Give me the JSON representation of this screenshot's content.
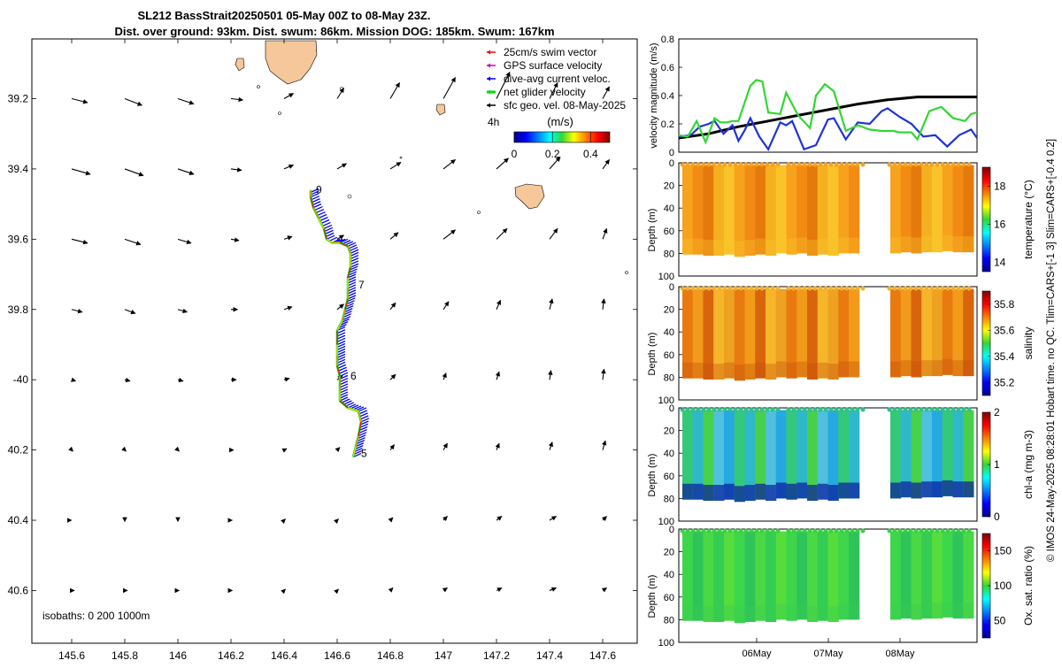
{
  "title": {
    "line1": "SL212 BassStrait20250501 05-May 00Z to 08-May 23Z.",
    "line2": "Dist. over ground: 93km. Dist. swum: 86km. Mission DOG: 185km. Swum: 167km"
  },
  "footer_note": "© IMOS 24-May-2025 08:28:01 Hobart time. no QC. Tlim=CARS+[-1 3] Slim=CARS+[-0.4 0.2]",
  "colors": {
    "swim": "#ff0000",
    "gps": "#cc00cc",
    "dac": "#0000ff",
    "net": "#00dd00",
    "sfc": "#000000",
    "land": "#f6c79a",
    "vel_black": "#000000",
    "vel_blue": "#1f33d6",
    "vel_green": "#33d633"
  },
  "chart_data": [
    {
      "type": "scatter",
      "name": "map",
      "xlabel": "",
      "ylabel": "",
      "xlim": [
        145.45,
        147.73
      ],
      "ylim": [
        -40.75,
        -39.03
      ],
      "xticks": [
        145.6,
        145.8,
        146,
        146.2,
        146.4,
        146.6,
        146.8,
        147,
        147.2,
        147.4,
        147.6
      ],
      "xtick_labels": [
        "145.6",
        "145.8",
        "146",
        "146.2",
        "146.4",
        "146.6",
        "146.8",
        "147",
        "147.2",
        "147.4",
        "147.6"
      ],
      "yticks": [
        -39.2,
        -39.4,
        -39.6,
        -39.8,
        -40,
        -40.2,
        -40.4,
        -40.6
      ],
      "ytick_labels": [
        "39.2",
        "39.4",
        "39.6",
        "39.8",
        "-40",
        "40.2",
        "40.4",
        "40.6"
      ],
      "legend": [
        {
          "label": "25cm/s swim vector",
          "color": "#ff0000"
        },
        {
          "label": "GPS surface velocity",
          "color": "#cc00cc"
        },
        {
          "label": "dive-avg current veloc.",
          "color": "#0000ff"
        },
        {
          "label": "net glider velocity",
          "color": "#00dd00"
        },
        {
          "label": "sfc geo. vel. 08-May-2025",
          "color": "#000000"
        }
      ],
      "legend_position": "top-right",
      "scale_label": "4h",
      "colorbar": {
        "label": "(m/s)",
        "ticks": [
          "0",
          "0.2",
          "0.4"
        ],
        "range": [
          0,
          0.5
        ]
      },
      "isobaths_label": "isobaths: 0   200  1000m",
      "day_labels": [
        {
          "text": "9",
          "lon": 146.52,
          "lat": -39.47
        },
        {
          "text": "7",
          "lon": 146.68,
          "lat": -39.74
        },
        {
          "text": "6",
          "lon": 146.65,
          "lat": -40.0
        },
        {
          "text": "5",
          "lon": 146.69,
          "lat": -40.22
        }
      ],
      "track": [
        [
          146.66,
          -40.22
        ],
        [
          146.67,
          -40.19
        ],
        [
          146.68,
          -40.16
        ],
        [
          146.69,
          -40.12
        ],
        [
          146.68,
          -40.09
        ],
        [
          146.64,
          -40.08
        ],
        [
          146.61,
          -40.06
        ],
        [
          146.61,
          -40.03
        ],
        [
          146.61,
          -39.99
        ],
        [
          146.6,
          -39.96
        ],
        [
          146.6,
          -39.93
        ],
        [
          146.6,
          -39.9
        ],
        [
          146.6,
          -39.86
        ],
        [
          146.62,
          -39.83
        ],
        [
          146.63,
          -39.8
        ],
        [
          146.64,
          -39.77
        ],
        [
          146.64,
          -39.74
        ],
        [
          146.64,
          -39.71
        ],
        [
          146.65,
          -39.68
        ],
        [
          146.65,
          -39.64
        ],
        [
          146.64,
          -39.62
        ],
        [
          146.61,
          -39.61
        ],
        [
          146.58,
          -39.61
        ],
        [
          146.56,
          -39.6
        ],
        [
          146.55,
          -39.57
        ],
        [
          146.53,
          -39.54
        ],
        [
          146.51,
          -39.51
        ],
        [
          146.5,
          -39.48
        ],
        [
          146.5,
          -39.46
        ]
      ],
      "vectors": {
        "lons": [
          145.6,
          145.8,
          146,
          146.2,
          146.4,
          146.6,
          146.8,
          147,
          147.2,
          147.4,
          147.6
        ],
        "lats": [
          -39.2,
          -39.4,
          -39.6,
          -39.8,
          -40,
          -40.2,
          -40.4,
          -40.6
        ],
        "u": [
          [
            0.12,
            0.13,
            0.12,
            0.09,
            0.07,
            0.05,
            0.07,
            0.09,
            0.1,
            0.06,
            0.05
          ],
          [
            0.14,
            0.14,
            0.12,
            0.08,
            0.07,
            0.07,
            0.08,
            0.09,
            0.09,
            0.08,
            0.05
          ],
          [
            0.12,
            0.12,
            0.1,
            0.06,
            0.06,
            0.05,
            0.06,
            0.09,
            0.08,
            0.06,
            0.03
          ],
          [
            0.08,
            0.08,
            0.07,
            0.05,
            0.06,
            0.05,
            0.04,
            0.04,
            0.03,
            0.02,
            0.01
          ],
          [
            0.03,
            0.04,
            0.04,
            0.04,
            0.04,
            0.04,
            0.04,
            0.02,
            0.02,
            0.01,
            0.01
          ],
          [
            0.01,
            0.01,
            0.01,
            0.02,
            0.02,
            0.02,
            0.03,
            0.03,
            0.02,
            0.02,
            0.02
          ],
          [
            0.0,
            0.0,
            0.0,
            0.01,
            0.01,
            0.01,
            0.02,
            0.03,
            0.04,
            0.05,
            0.03
          ],
          [
            0.02,
            0.02,
            0.01,
            0.01,
            0.01,
            0.01,
            0.02,
            0.03,
            0.04,
            0.05,
            0.03
          ]
        ],
        "v": [
          [
            -0.03,
            -0.05,
            -0.04,
            -0.01,
            0.04,
            0.08,
            0.12,
            0.16,
            0.2,
            0.12,
            0.09
          ],
          [
            -0.04,
            -0.05,
            -0.04,
            -0.01,
            0.03,
            0.04,
            0.05,
            0.07,
            0.08,
            0.09,
            0.07
          ],
          [
            -0.03,
            -0.04,
            -0.03,
            -0.01,
            0.02,
            0.03,
            0.05,
            0.07,
            0.08,
            0.08,
            0.08
          ],
          [
            -0.02,
            -0.03,
            -0.02,
            0.0,
            0.02,
            0.04,
            0.05,
            0.06,
            0.07,
            0.08,
            0.08
          ],
          [
            -0.01,
            -0.01,
            -0.01,
            0.0,
            0.01,
            0.03,
            0.04,
            0.05,
            0.06,
            0.07,
            0.08
          ],
          [
            -0.01,
            -0.01,
            -0.01,
            0.0,
            0.01,
            0.02,
            0.04,
            0.05,
            0.05,
            0.06,
            0.07
          ],
          [
            0.0,
            -0.01,
            -0.01,
            0.0,
            0.01,
            0.01,
            0.02,
            0.03,
            0.03,
            0.03,
            0.03
          ],
          [
            0.0,
            0.0,
            0.0,
            0.0,
            0.01,
            0.01,
            0.02,
            0.02,
            0.02,
            0.02,
            0.02
          ]
        ]
      }
    },
    {
      "type": "line",
      "name": "velocity",
      "ylabel": "velocity magnitude (m/s)",
      "ylim": [
        0,
        0.8
      ],
      "yticks": [
        0,
        0.2,
        0.4,
        0.6,
        0.8
      ],
      "xlim": [
        4.0,
        9.0
      ],
      "series": [
        {
          "name": "black",
          "color": "#000000",
          "x": [
            4.0,
            4.5,
            5.0,
            5.5,
            6.0,
            6.5,
            7.0,
            7.5,
            8.0,
            8.5,
            9.0
          ],
          "values": [
            0.1,
            0.13,
            0.18,
            0.22,
            0.26,
            0.3,
            0.34,
            0.37,
            0.39,
            0.39,
            0.39
          ]
        },
        {
          "name": "blue",
          "color": "#1f33d6",
          "x": [
            4.0,
            4.2,
            4.35,
            4.5,
            4.6,
            4.75,
            4.9,
            5.0,
            5.1,
            5.2,
            5.35,
            5.5,
            5.7,
            5.8,
            5.9,
            6.1,
            6.3,
            6.5,
            6.6,
            6.8,
            7.0,
            7.2,
            7.4,
            7.5,
            7.7,
            7.9,
            8.1,
            8.3,
            8.5,
            8.7,
            8.9,
            9.0
          ],
          "values": [
            0.11,
            0.12,
            0.18,
            0.2,
            0.22,
            0.13,
            0.19,
            0.08,
            0.15,
            0.24,
            0.11,
            0.02,
            0.21,
            0.19,
            0.22,
            0.02,
            0.05,
            0.23,
            0.24,
            0.09,
            0.21,
            0.2,
            0.29,
            0.31,
            0.25,
            0.2,
            0.11,
            0.12,
            0.04,
            0.12,
            0.16,
            0.1
          ]
        },
        {
          "name": "green",
          "color": "#33d633",
          "x": [
            4.0,
            4.15,
            4.3,
            4.45,
            4.6,
            4.7,
            4.8,
            4.9,
            5.0,
            5.2,
            5.3,
            5.4,
            5.5,
            5.7,
            5.8,
            6.0,
            6.2,
            6.3,
            6.45,
            6.6,
            6.8,
            7.0,
            7.2,
            7.4,
            7.6,
            7.7,
            7.9,
            8.0,
            8.2,
            8.4,
            8.6,
            8.8,
            8.9,
            9.0
          ],
          "values": [
            0.12,
            0.11,
            0.22,
            0.07,
            0.24,
            0.21,
            0.21,
            0.22,
            0.22,
            0.47,
            0.51,
            0.5,
            0.28,
            0.27,
            0.42,
            0.26,
            0.17,
            0.4,
            0.48,
            0.43,
            0.15,
            0.19,
            0.16,
            0.15,
            0.15,
            0.14,
            0.14,
            0.09,
            0.29,
            0.32,
            0.24,
            0.22,
            0.27,
            0.28
          ]
        }
      ]
    },
    {
      "type": "heatmap",
      "name": "temperature",
      "ylabel": "Depth (m)",
      "clabel": "temperature (°C)",
      "ylim": [
        0,
        100
      ],
      "yticks": [
        0,
        20,
        40,
        60,
        80,
        100
      ],
      "clim": [
        13.5,
        19
      ],
      "cticks": [
        14,
        16,
        18
      ],
      "bottom_depth": [
        81,
        81,
        82,
        82,
        81,
        83,
        82,
        81,
        82,
        80,
        81,
        80,
        82,
        81,
        82,
        80,
        80,
        78,
        80,
        80,
        80,
        79,
        80,
        79,
        79,
        78,
        79,
        79
      ]
    },
    {
      "type": "heatmap",
      "name": "salinity",
      "ylabel": "Depth (m)",
      "clabel": "salinity",
      "ylim": [
        0,
        100
      ],
      "yticks": [
        0,
        20,
        40,
        60,
        80,
        100
      ],
      "clim": [
        35.1,
        35.9
      ],
      "cticks": [
        35.2,
        35.4,
        35.6,
        35.8
      ],
      "bottom_depth": [
        81,
        81,
        82,
        82,
        81,
        83,
        82,
        81,
        82,
        80,
        81,
        80,
        82,
        81,
        82,
        80,
        80,
        78,
        80,
        80,
        80,
        79,
        80,
        79,
        79,
        78,
        79,
        79
      ]
    },
    {
      "type": "heatmap",
      "name": "chl-a",
      "ylabel": "Depth (m)",
      "clabel": "chl-a (mg m-3)",
      "ylim": [
        0,
        100
      ],
      "yticks": [
        0,
        20,
        40,
        60,
        80,
        100
      ],
      "clim": [
        0,
        2
      ],
      "cticks": [
        0,
        1,
        2
      ],
      "bottom_depth": [
        81,
        81,
        82,
        82,
        81,
        83,
        82,
        81,
        82,
        80,
        81,
        80,
        82,
        81,
        82,
        80,
        80,
        78,
        80,
        80,
        80,
        79,
        80,
        79,
        79,
        78,
        79,
        79
      ]
    },
    {
      "type": "heatmap",
      "name": "oxygen",
      "ylabel": "Depth (m)",
      "clabel": "Ox. sat. ratio (%)",
      "ylim": [
        0,
        100
      ],
      "yticks": [
        0,
        20,
        40,
        60,
        80,
        100
      ],
      "clim": [
        25,
        175
      ],
      "cticks": [
        50,
        100,
        150
      ],
      "bottom_depth": [
        81,
        81,
        82,
        82,
        81,
        83,
        82,
        81,
        82,
        80,
        81,
        80,
        82,
        81,
        82,
        80,
        80,
        78,
        80,
        80,
        80,
        79,
        80,
        79,
        79,
        78,
        79,
        79
      ],
      "xtick_labels": [
        "06May",
        "07May",
        "08May"
      ]
    }
  ]
}
